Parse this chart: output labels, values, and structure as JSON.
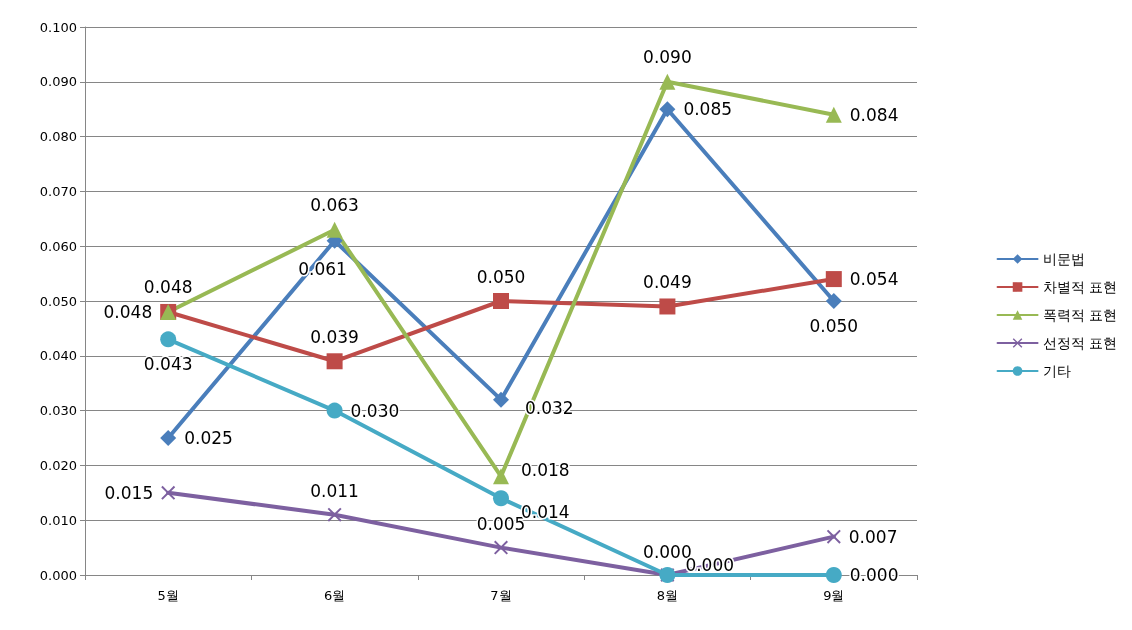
{
  "chart_data": {
    "type": "line",
    "categories": [
      "5월",
      "6월",
      "7월",
      "8월",
      "9월"
    ],
    "series": [
      {
        "name": "비문법",
        "color": "#4a7ebb",
        "marker": "diamond",
        "values": [
          0.025,
          0.061,
          0.032,
          0.085,
          0.05
        ],
        "value_labels": [
          "0.025",
          "0.061",
          "0.032",
          "0.085",
          "0.050"
        ]
      },
      {
        "name": "차별적 표현",
        "color": "#be4b48",
        "marker": "square",
        "values": [
          0.048,
          0.039,
          0.05,
          0.049,
          0.054
        ],
        "value_labels": [
          "0.048",
          "0.039",
          "0.050",
          "0.049",
          "0.054"
        ]
      },
      {
        "name": "폭력적 표현",
        "color": "#98b954",
        "marker": "triangle",
        "values": [
          0.048,
          0.063,
          0.018,
          0.09,
          0.084
        ],
        "value_labels": [
          "0.048",
          "0.063",
          "0.018",
          "0.090",
          "0.084"
        ]
      },
      {
        "name": "선정적 표현",
        "color": "#7d60a0",
        "marker": "cross",
        "values": [
          0.015,
          0.011,
          0.005,
          0.0,
          0.007
        ],
        "value_labels": [
          "0.015",
          "0.011",
          "0.005",
          "0.000",
          "0.007"
        ]
      },
      {
        "name": "기타",
        "color": "#46aac5",
        "marker": "circle",
        "values": [
          0.043,
          0.03,
          0.014,
          0.0,
          0.0
        ],
        "value_labels": [
          "0.043",
          "0.030",
          "0.014",
          "0.000",
          "0.000"
        ]
      }
    ],
    "ylim": [
      0,
      0.1
    ],
    "yticks": [
      {
        "value": 0,
        "label": "0.000"
      },
      {
        "value": 0.01,
        "label": "0.010"
      },
      {
        "value": 0.02,
        "label": "0.020"
      },
      {
        "value": 0.03,
        "label": "0.030"
      },
      {
        "value": 0.04,
        "label": "0.040"
      },
      {
        "value": 0.05,
        "label": "0.050"
      },
      {
        "value": 0.06,
        "label": "0.060"
      },
      {
        "value": 0.07,
        "label": "0.070"
      },
      {
        "value": 0.08,
        "label": "0.080"
      },
      {
        "value": 0.09,
        "label": "0.090"
      },
      {
        "value": 0.1,
        "label": "0.100"
      }
    ],
    "grid": "y",
    "legend": "right",
    "line_style": "solid"
  }
}
